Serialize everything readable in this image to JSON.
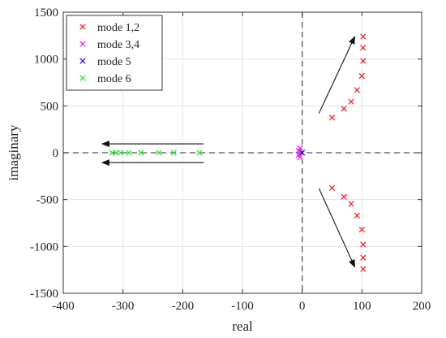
{
  "chart_data": {
    "type": "scatter",
    "title": "",
    "xlabel": "real",
    "ylabel": "imaginary",
    "xlim": [
      -400,
      200
    ],
    "ylim": [
      -1500,
      1500
    ],
    "xticks": [
      -400,
      -300,
      -200,
      -100,
      0,
      100,
      200
    ],
    "yticks": [
      -1500,
      -1000,
      -500,
      0,
      500,
      1000,
      1500
    ],
    "grid": true,
    "legend_position": "top-left",
    "marker": "x",
    "reference_lines": {
      "x": 0,
      "y": 0,
      "style": "dashed"
    },
    "series": [
      {
        "name": "mode 1,2",
        "color": "#e8262a",
        "points": [
          [
            50,
            375
          ],
          [
            70,
            470
          ],
          [
            82,
            545
          ],
          [
            92,
            670
          ],
          [
            100,
            820
          ],
          [
            102,
            980
          ],
          [
            102,
            1120
          ],
          [
            102,
            1240
          ],
          [
            50,
            -375
          ],
          [
            70,
            -470
          ],
          [
            82,
            -545
          ],
          [
            92,
            -670
          ],
          [
            100,
            -820
          ],
          [
            102,
            -980
          ],
          [
            102,
            -1120
          ],
          [
            102,
            -1240
          ]
        ]
      },
      {
        "name": "mode 3,4",
        "color": "#ee22ee",
        "points": [
          [
            -4,
            48
          ],
          [
            -6,
            22
          ],
          [
            -4,
            -48
          ],
          [
            -6,
            -22
          ]
        ]
      },
      {
        "name": "mode 5",
        "color": "#1a1acc",
        "points": [
          [
            0,
            0
          ]
        ]
      },
      {
        "name": "mode 6",
        "color": "#33dd33",
        "points": [
          [
            -318,
            0
          ],
          [
            -312,
            0
          ],
          [
            -304,
            0
          ],
          [
            -290,
            0
          ],
          [
            -270,
            0
          ],
          [
            -240,
            0
          ],
          [
            -215,
            0
          ],
          [
            -172,
            0
          ]
        ]
      }
    ],
    "arrows": [
      {
        "from": [
          -165,
          95
        ],
        "to": [
          -335,
          95
        ]
      },
      {
        "from": [
          -165,
          -105
        ],
        "to": [
          -335,
          -105
        ]
      },
      {
        "from": [
          28,
          420
        ],
        "to": [
          88,
          1240
        ]
      },
      {
        "from": [
          28,
          -380
        ],
        "to": [
          88,
          -1220
        ]
      }
    ]
  }
}
